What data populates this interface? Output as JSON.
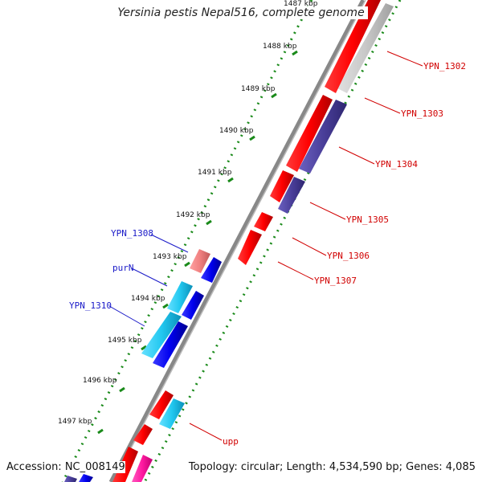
{
  "title": "Yersinia pestis Nepal516, complete genome",
  "accession": "Accession: NC_008149",
  "topology": "Topology: circular; Length: 4,534,590 bp; Genes: 4,085",
  "ticks": [
    "1487 kbp",
    "1488 kbp",
    "1489 kbp",
    "1490 kbp",
    "1491 kbp",
    "1492 kbp",
    "1493 kbp",
    "1494 kbp",
    "1495 kbp",
    "1496 kbp",
    "1497 kbp"
  ],
  "genes_right": [
    "YPN_1302",
    "YPN_1303",
    "YPN_1304",
    "YPN_1305",
    "YPN_1306",
    "YPN_1307",
    "upp"
  ],
  "genes_left": [
    "YPN_1308",
    "purN",
    "YPN_1310"
  ],
  "colors": {
    "forward_gene": "#ff0000",
    "reverse_gene": "#0000e0",
    "cyan_gene": "#22c8f0",
    "pink_gene": "#f08080",
    "purple_gene": "#4a3f9a",
    "magenta_gene": "#ff1aa0",
    "backbone": "#888888",
    "tick_dots": "#1a8a1a"
  }
}
